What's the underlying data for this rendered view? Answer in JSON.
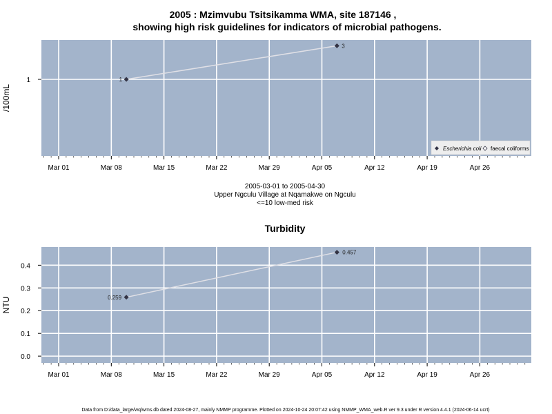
{
  "title_line1": "2005 : Mzimvubu Tsitsikamma WMA, site 187146 ,",
  "title_line2": "showing high risk guidelines for indicators of microbial pathogens.",
  "subtitle_lines": [
    "2005-03-01 to 2005-04-30",
    "Upper Ngculu Village at Nqamakwe on Ngculu",
    "<=10 low-med risk"
  ],
  "footer": "Data from D:/data_large/wq/wms.db dated 2024-08-27, mainly NMMP programme. Plotted on 2024-10-24 20:07:42 using NMMP_WMA_web.R ver 9.3 under R version 4.4.1 (2024-06-14 ucrt)",
  "colors": {
    "panel": "#a3b4cb",
    "grid": "#ffffff",
    "line": "#e0e0e6",
    "point": "#333344"
  },
  "chart_data": [
    {
      "type": "line",
      "title": "",
      "ylabel": "/100mL",
      "x_ticks": [
        "Mar 01",
        "Mar 08",
        "Mar 15",
        "Mar 22",
        "Mar 29",
        "Apr 05",
        "Apr 12",
        "Apr 19",
        "Apr 26"
      ],
      "x_range": [
        "2005-02-27",
        "2005-05-03"
      ],
      "y_scale": "log",
      "y_ticks": [
        "1"
      ],
      "grid": true,
      "legend_position": "bottom-right",
      "legend": [
        {
          "label": "Escherichia coli",
          "marker": "filled-diamond"
        },
        {
          "label": "faecal coliforms",
          "marker": "open-diamond"
        }
      ],
      "series": [
        {
          "name": "Escherichia coli",
          "x": [
            "2005-03-10",
            "2005-04-07"
          ],
          "y": [
            1,
            3
          ],
          "labels": [
            "1",
            "3"
          ]
        }
      ]
    },
    {
      "type": "line",
      "title": "Turbidity",
      "ylabel": "NTU",
      "x_ticks": [
        "Mar 01",
        "Mar 08",
        "Mar 15",
        "Mar 22",
        "Mar 29",
        "Apr 05",
        "Apr 12",
        "Apr 19",
        "Apr 26"
      ],
      "x_range": [
        "2005-02-27",
        "2005-05-03"
      ],
      "y_ticks": [
        "0.0",
        "0.1",
        "0.2",
        "0.3",
        "0.4"
      ],
      "ylim": [
        -0.03,
        0.48
      ],
      "grid": true,
      "series": [
        {
          "x": [
            "2005-03-10",
            "2005-04-07"
          ],
          "y": [
            0.259,
            0.457
          ],
          "labels": [
            "0.259",
            "0.457"
          ]
        }
      ]
    }
  ]
}
